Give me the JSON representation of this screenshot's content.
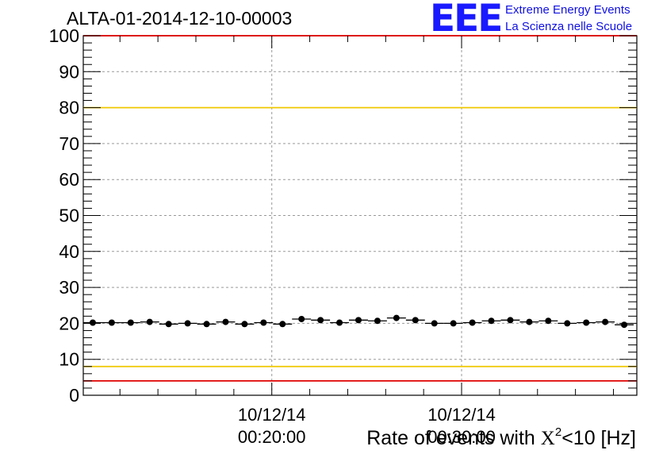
{
  "title": "ALTA-01-2014-12-10-00003",
  "logo": {
    "mark": "EEE",
    "line1": "Extreme Energy Events",
    "line2": "La Scienza nelle Scuole"
  },
  "colors": {
    "red_limit": "#e00000",
    "yellow_limit": "#f0c800",
    "logo_blue": "#1a1aff"
  },
  "chart_data": {
    "type": "scatter",
    "xlabel_prefix": "Rate of events with ",
    "xlabel_symbol": "X",
    "xlabel_superscript": "2",
    "xlabel_suffix": "<10 [Hz]",
    "ylim": [
      0,
      100
    ],
    "yticks": [
      "0",
      "10",
      "20",
      "30",
      "40",
      "50",
      "60",
      "70",
      "80",
      "90",
      "100"
    ],
    "xticks": [
      {
        "date": "10/12/14",
        "time": "00:20:00"
      },
      {
        "date": "10/12/14",
        "time": "00:30:00"
      }
    ],
    "x_range": [
      "00:10:04",
      "00:39:14"
    ],
    "bin_minutes": 1,
    "x": [
      "00:10:34",
      "00:11:34",
      "00:12:34",
      "00:13:34",
      "00:14:34",
      "00:15:34",
      "00:16:34",
      "00:17:34",
      "00:18:34",
      "00:19:34",
      "00:20:34",
      "00:21:34",
      "00:22:34",
      "00:23:34",
      "00:24:34",
      "00:25:34",
      "00:26:34",
      "00:27:34",
      "00:28:34",
      "00:29:34",
      "00:30:34",
      "00:31:34",
      "00:32:34",
      "00:33:34",
      "00:34:34",
      "00:35:34",
      "00:36:34",
      "00:37:34",
      "00:38:34"
    ],
    "values": [
      20.2,
      20.2,
      20.2,
      20.4,
      19.8,
      20.0,
      19.8,
      20.4,
      19.8,
      20.2,
      19.8,
      21.2,
      20.9,
      20.2,
      20.9,
      20.7,
      21.5,
      20.9,
      20.0,
      20.0,
      20.2,
      20.7,
      20.9,
      20.4,
      20.7,
      20.0,
      20.2,
      20.4,
      19.6
    ],
    "reference_lines": [
      {
        "value": 100,
        "color": "red"
      },
      {
        "value": 80,
        "color": "yellow"
      },
      {
        "value": 8,
        "color": "yellow"
      },
      {
        "value": 4,
        "color": "red"
      }
    ],
    "grid": true
  }
}
